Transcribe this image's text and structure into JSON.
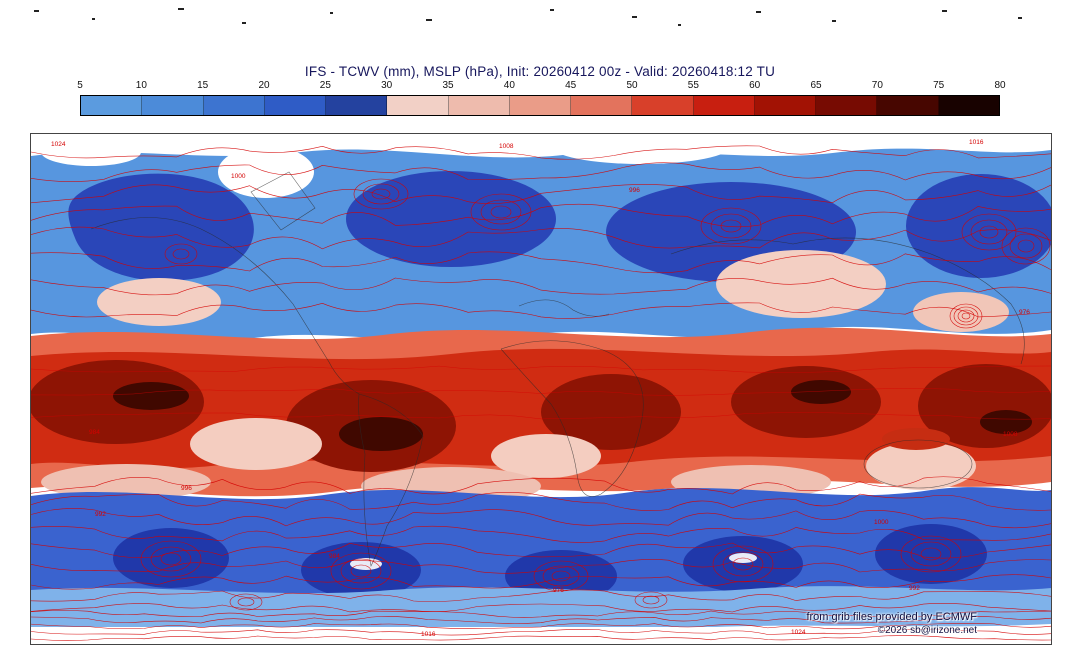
{
  "title": "IFS - TCWV (mm), MSLP (hPa), Init: 20260412 00z - Valid: 20260418:12 TU",
  "colorbar": {
    "unit": "mm",
    "tick_labels": [
      "5",
      "10",
      "15",
      "20",
      "25",
      "30",
      "35",
      "40",
      "45",
      "50",
      "55",
      "60",
      "65",
      "70",
      "75",
      "80"
    ],
    "segment_colors": [
      "#5b9bdf",
      "#4c8bd9",
      "#3d74d0",
      "#2f5cc6",
      "#24429f",
      "#f2d0c6",
      "#eebbad",
      "#ea9c88",
      "#e3735d",
      "#d8402a",
      "#c81f10",
      "#a21204",
      "#770b02",
      "#470600",
      "#180200"
    ]
  },
  "map": {
    "variable": "TCWV (mm)",
    "overlay": "MSLP (hPa)",
    "model": "IFS",
    "init": "20260412 00z",
    "valid": "20260418:12 TU",
    "mslp_contour_labels": [
      "1024",
      "1016",
      "1008",
      "1000",
      "996",
      "992",
      "984",
      "976"
    ]
  },
  "credits": {
    "source": "from grib files provided by ECMWF",
    "copyright": "©2026 sb@irizone.net"
  }
}
